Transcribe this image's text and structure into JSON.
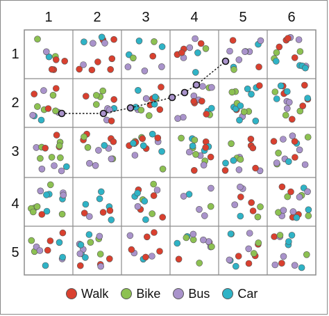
{
  "columns": [
    "1",
    "2",
    "3",
    "4",
    "5",
    "6"
  ],
  "rows": [
    "1",
    "2",
    "3",
    "4",
    "5"
  ],
  "legend": [
    {
      "label": "Walk",
      "color": "#d9402f"
    },
    {
      "label": "Bike",
      "color": "#8dc152"
    },
    {
      "label": "Bus",
      "color": "#a993cb"
    },
    {
      "label": "Car",
      "color": "#2fb3c6"
    }
  ],
  "grid_line_color": "#8c8c8c",
  "path_color": "#111111",
  "dot_outline_color": "#555555"
}
